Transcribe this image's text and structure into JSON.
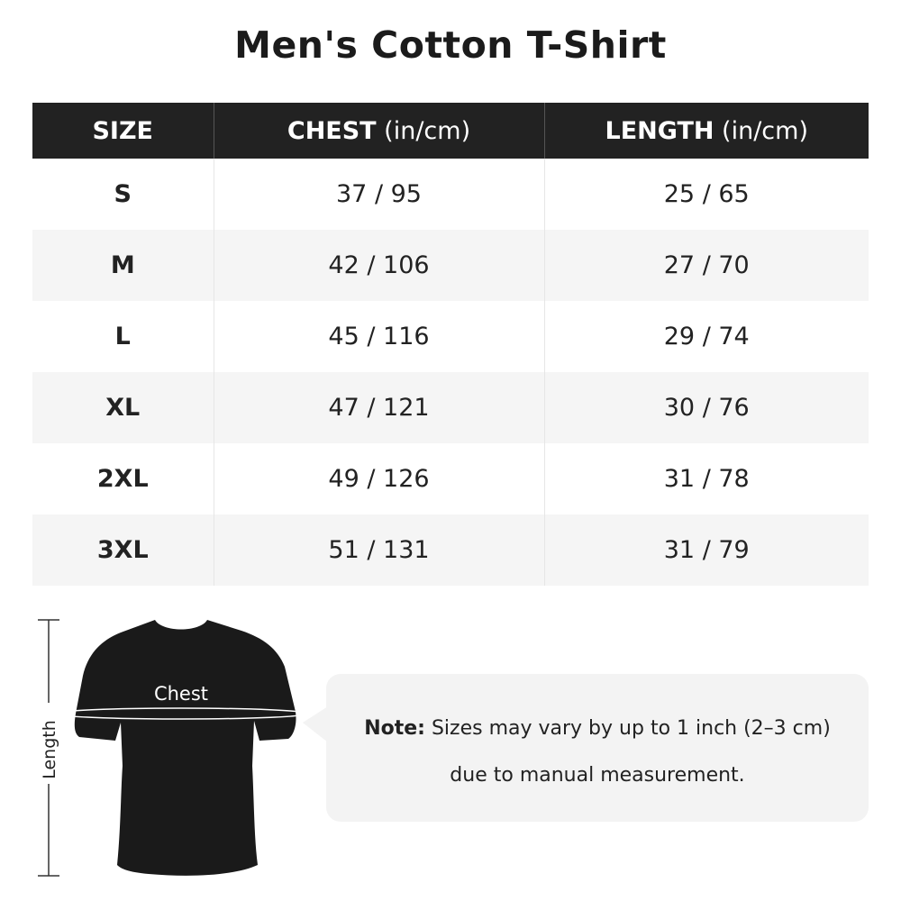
{
  "title": "Men's Cotton T-Shirt",
  "table": {
    "headers": [
      {
        "label": "SIZE",
        "unit": ""
      },
      {
        "label": "CHEST",
        "unit": " (in/cm)"
      },
      {
        "label": "LENGTH",
        "unit": " (in/cm)"
      }
    ],
    "rows": [
      {
        "size": "S",
        "chest": "37 / 95",
        "length": "25 / 65"
      },
      {
        "size": "M",
        "chest": "42 / 106",
        "length": "27 / 70"
      },
      {
        "size": "L",
        "chest": "45 / 116",
        "length": "29 / 74"
      },
      {
        "size": "XL",
        "chest": "47 / 121",
        "length": "30 / 76"
      },
      {
        "size": "2XL",
        "chest": "49 / 126",
        "length": "31 / 78"
      },
      {
        "size": "3XL",
        "chest": "51 / 131",
        "length": "31 / 79"
      }
    ]
  },
  "diagram": {
    "chest_label": "Chest",
    "length_label": "Length"
  },
  "note": {
    "prefix": "Note:",
    "line1": " Sizes may vary by up to 1 inch (2–3 cm)",
    "line2": "due to manual measurement."
  },
  "colors": {
    "header_bg": "#222222",
    "alt_row": "#f5f5f5",
    "note_bg": "#f3f3f3"
  }
}
